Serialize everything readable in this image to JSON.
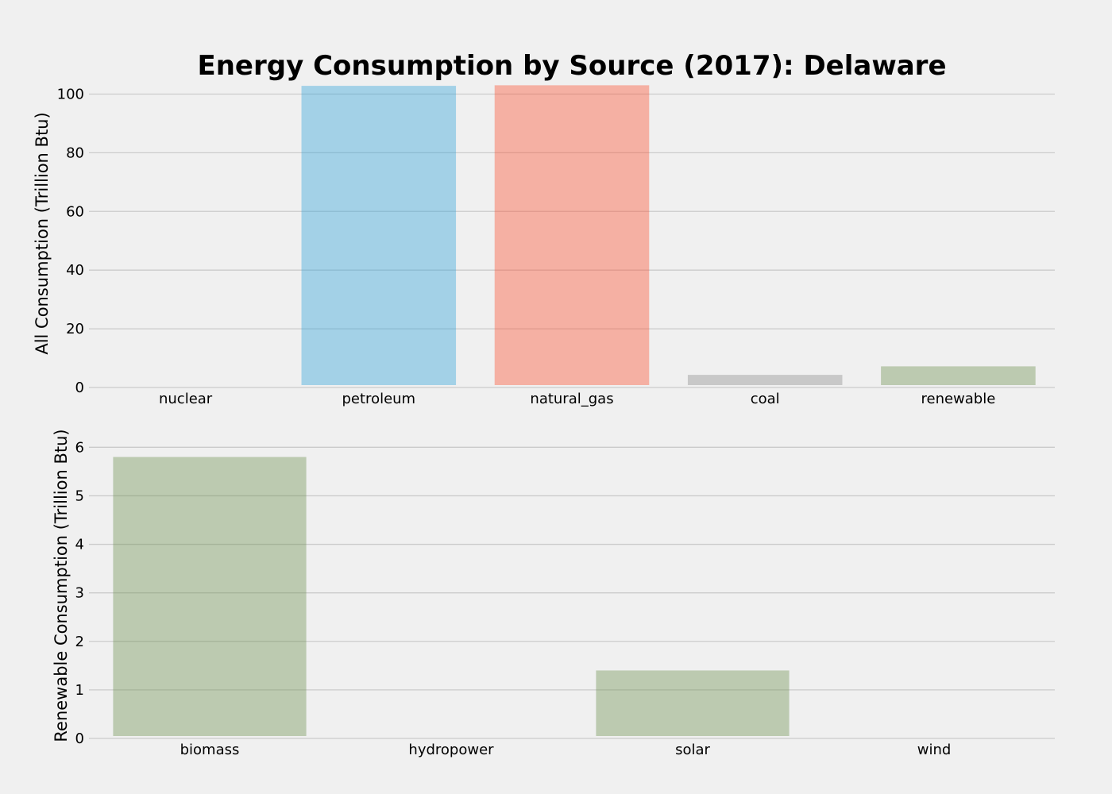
{
  "chart_data": [
    {
      "type": "bar",
      "title": "Energy Consumption by Source (2017): Delaware",
      "xlabel": "",
      "ylabel": "All Consumption (Trillion Btu)",
      "categories": [
        "nuclear",
        "petroleum",
        "natural_gas",
        "coal",
        "renewable"
      ],
      "values": [
        0,
        102.8,
        103.0,
        4.3,
        7.2
      ],
      "colors": [
        "#30a2da",
        "#30a2da",
        "#e5ae38",
        "#8b8b8b",
        "#6d904f"
      ],
      "ylim": [
        0,
        105
      ],
      "yticks": [
        0,
        20,
        40,
        60,
        80,
        100
      ],
      "grid": true
    },
    {
      "type": "bar",
      "xlabel": "",
      "ylabel": "Renewable Consumption (Trillion Btu)",
      "categories": [
        "biomass",
        "hydropower",
        "solar",
        "wind"
      ],
      "values": [
        5.8,
        0,
        1.4,
        0
      ],
      "colors": [
        "#6d904f",
        "#6d904f",
        "#6d904f",
        "#6d904f"
      ],
      "ylim": [
        0,
        6.3
      ],
      "yticks": [
        0,
        1,
        2,
        3,
        4,
        5,
        6
      ],
      "grid": true
    }
  ]
}
